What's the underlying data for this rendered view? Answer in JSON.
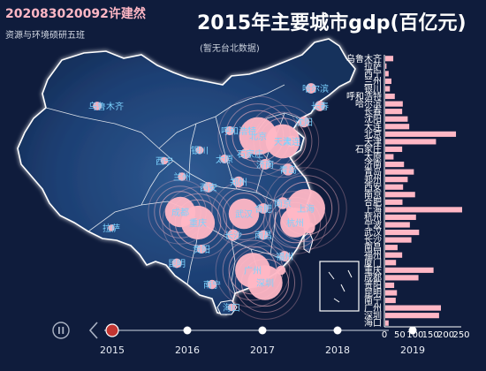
{
  "header": {
    "student": "202083020092许建然",
    "dept": "资源与环境硕研五班"
  },
  "chart_title": "2015年主要城市gdp(百亿元)",
  "chart_subtitle": "(暂无台北数据)",
  "colors": {
    "background": "#0f1c3c",
    "bubble": "#ffb7c5",
    "bar": "#ffb7c5",
    "label": "#7cd3ff",
    "map_fill": "#1d3f73",
    "map_stroke": "#ffffff"
  },
  "timeline": {
    "years": [
      "2015",
      "2016",
      "2017",
      "2018",
      "2019"
    ],
    "current": "2015",
    "controls": [
      "pause-icon",
      "chevron-left-icon"
    ]
  },
  "chart_data": {
    "type": "bar",
    "orientation": "horizontal",
    "categories": [
      "乌鲁木齐",
      "拉萨",
      "西宁",
      "兰州",
      "银川",
      "呼和浩特",
      "哈尔滨",
      "长春",
      "沈阳",
      "大连",
      "北京",
      "天津",
      "石家庄",
      "太原",
      "济南",
      "青岛",
      "郑州",
      "西安",
      "南京",
      "合肥",
      "上海",
      "杭州",
      "宁波",
      "武汉",
      "长沙",
      "南昌",
      "福州",
      "厦门",
      "重庆",
      "成都",
      "贵阳",
      "昆明",
      "南宁",
      "广州",
      "深圳",
      "海口"
    ],
    "values": [
      26,
      4,
      11,
      20,
      15,
      31,
      57,
      55,
      73,
      78,
      230,
      165,
      55,
      27,
      61,
      93,
      73,
      58,
      97,
      56,
      250,
      100,
      80,
      110,
      85,
      40,
      55,
      35,
      157,
      108,
      29,
      38,
      34,
      181,
      175,
      11
    ],
    "xlim": [
      0,
      250
    ],
    "xticks": [
      "0",
      "50",
      "100",
      "150",
      "200",
      "250"
    ],
    "bubbles": {
      "乌鲁木齐": 26,
      "拉萨": 4,
      "西宁": 11,
      "兰州": 20,
      "银川": 15,
      "呼和浩特": 31,
      "哈尔滨": 57,
      "长春": 55,
      "沈阳": 73,
      "大连": 78,
      "北京": 230,
      "天津": 165,
      "石家庄": 55,
      "太原": 27,
      "济南": 61,
      "青岛": 93,
      "郑州": 73,
      "西安": 58,
      "南京": 97,
      "合肥": 56,
      "上海": 250,
      "杭州": 100,
      "宁波": 80,
      "武汉": 110,
      "长沙": 85,
      "南昌": 40,
      "福州": 55,
      "厦门": 35,
      "重庆": 157,
      "成都": 108,
      "贵阳": 29,
      "昆明": 38,
      "南宁": 34,
      "广州": 181,
      "深圳": 175,
      "海口": 11
    }
  }
}
